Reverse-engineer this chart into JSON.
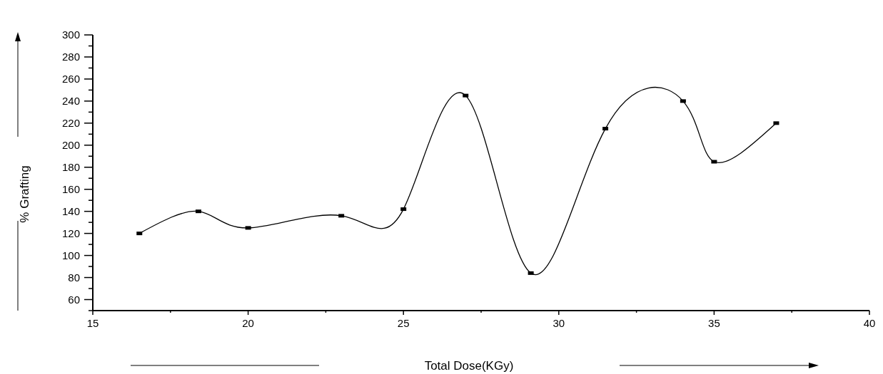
{
  "chart_data": {
    "type": "line",
    "xlabel": "Total Dose(KGy)",
    "ylabel": "% Grafting",
    "x": [
      16.5,
      18.4,
      20,
      23,
      25,
      27,
      29.1,
      31.5,
      34,
      35,
      37
    ],
    "series": [
      {
        "color": "#000000",
        "values": [
          120,
          140,
          125,
          136,
          142,
          245,
          84,
          215,
          240,
          185,
          220
        ]
      }
    ],
    "xlim": [
      15,
      40
    ],
    "xticks": [
      15,
      20,
      25,
      30,
      35,
      40
    ],
    "ylim": [
      50,
      300
    ],
    "yticks": [
      60,
      80,
      100,
      120,
      140,
      160,
      180,
      200,
      220,
      240,
      260,
      280,
      300
    ],
    "grid": false,
    "marker": "square",
    "line_style": "solid"
  }
}
